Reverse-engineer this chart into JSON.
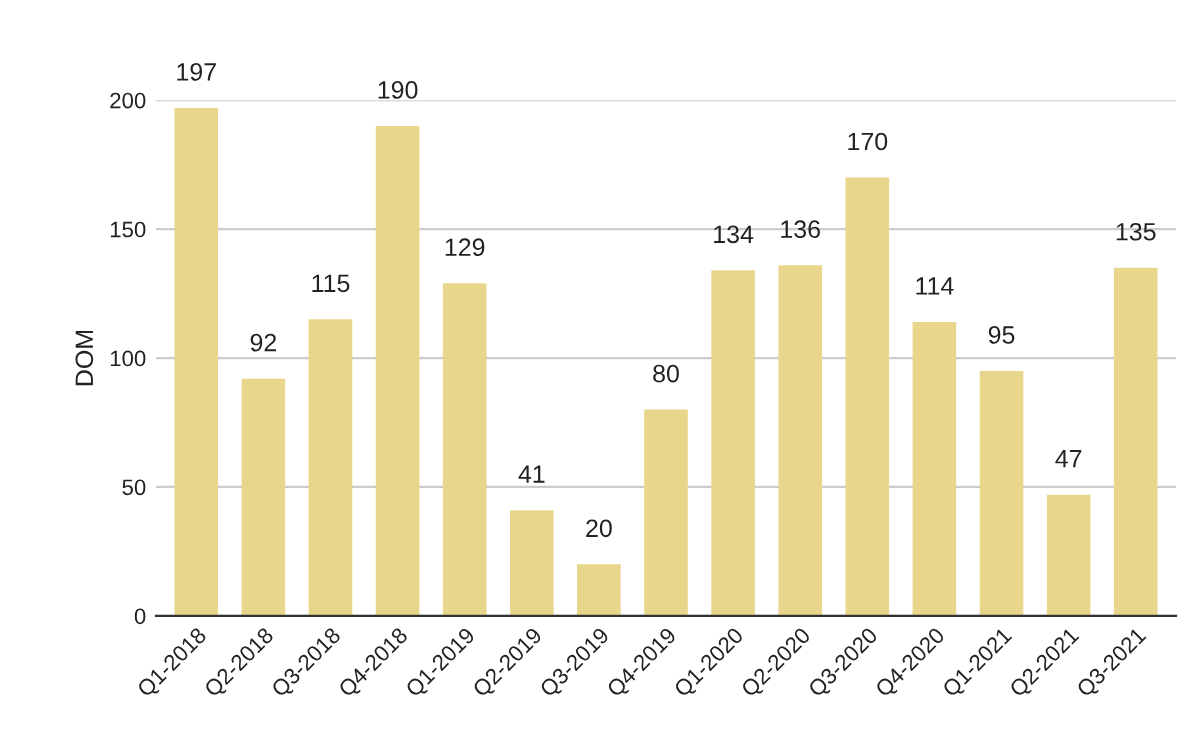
{
  "chart_data": {
    "type": "bar",
    "ylabel": "DOM",
    "categories": [
      "Q1-2018",
      "Q2-2018",
      "Q3-2018",
      "Q4-2018",
      "Q1-2019",
      "Q2-2019",
      "Q3-2019",
      "Q4-2019",
      "Q1-2020",
      "Q2-2020",
      "Q3-2020",
      "Q4-2020",
      "Q1-2021",
      "Q2-2021",
      "Q3-2021"
    ],
    "values": [
      197,
      92,
      115,
      190,
      129,
      41,
      20,
      80,
      134,
      136,
      170,
      114,
      95,
      47,
      135
    ],
    "color": "#e8d68c",
    "ylim": [
      0,
      200
    ],
    "yticks": [
      0,
      50,
      100,
      150,
      200
    ],
    "grid": "y",
    "data_labels": true,
    "legend": false
  }
}
